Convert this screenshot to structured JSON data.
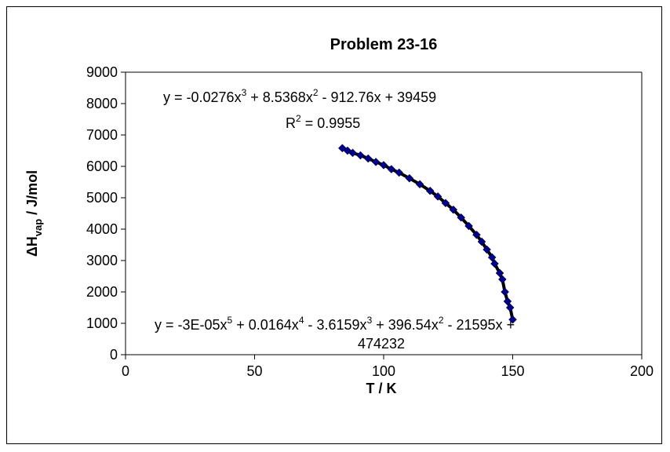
{
  "chart_data": {
    "type": "scatter",
    "title": "Problem 23-16",
    "xlabel": "T / K",
    "ylabel": {
      "delta": "Δ",
      "main": "H",
      "sub": "vap",
      "rest": " / J/mol"
    },
    "xlim": [
      0,
      200
    ],
    "ylim": [
      0,
      9000
    ],
    "xticks": [
      "0",
      "50",
      "100",
      "150",
      "200"
    ],
    "yticks": [
      "0",
      "1000",
      "2000",
      "3000",
      "4000",
      "5000",
      "6000",
      "7000",
      "8000",
      "9000"
    ],
    "grid": false,
    "marker_color": "#00008B",
    "trend_color": "#000000",
    "series": [
      {
        "x": [
          84,
          86,
          88,
          91,
          94,
          97,
          100,
          103,
          106,
          110,
          114,
          118,
          121,
          124,
          127,
          130,
          133,
          136,
          138,
          140,
          142,
          143,
          145,
          146,
          147,
          148,
          149,
          150
        ],
        "y": [
          6580,
          6500,
          6430,
          6350,
          6250,
          6140,
          6040,
          5910,
          5800,
          5620,
          5430,
          5220,
          5040,
          4830,
          4620,
          4370,
          4100,
          3820,
          3600,
          3350,
          3100,
          2900,
          2600,
          2400,
          2000,
          1700,
          1500,
          1120
        ]
      }
    ],
    "trendlines": [
      {
        "equation": {
          "a": "y = -0.0276x",
          "b": "3",
          "c": " + 8.5368x",
          "d": "2",
          "e": " - 912.76x + 39459"
        },
        "r2": {
          "a": "R",
          "b": "2",
          "c": " = 0.9955"
        }
      },
      {
        "equation": {
          "a": "y = -3E-05x",
          "b": "5",
          "c": " + 0.0164x",
          "d": "4",
          "e": " - 3.6159x",
          "f": "3",
          "g": " + 396.54x",
          "h": "2",
          "i": " - 21595x +"
        },
        "line2": "474232"
      }
    ]
  }
}
